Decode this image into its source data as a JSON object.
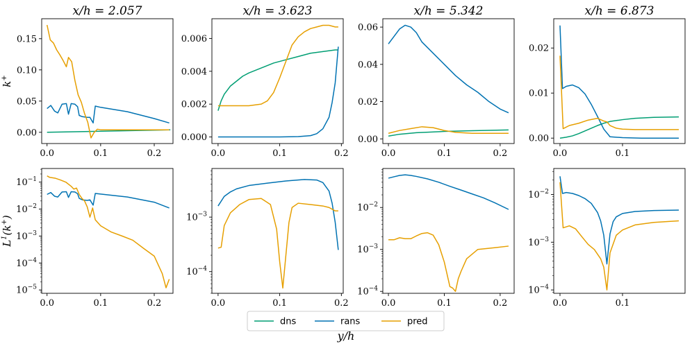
{
  "figure": {
    "xlabel": "y/h"
  },
  "legend": {
    "placement": "bottom-center",
    "entries": [
      {
        "name": "dns",
        "color": "#009E73"
      },
      {
        "name": "rans",
        "color": "#0072B2"
      },
      {
        "name": "pred",
        "color": "#E69F00"
      }
    ]
  },
  "chart_data": [
    {
      "type": "line",
      "title": "x/h = 2.057",
      "row": 0,
      "col": 0,
      "ylabel": "k+",
      "scale": "linear",
      "xlim": [
        -0.01,
        0.235
      ],
      "ylim": [
        -0.018,
        0.182
      ],
      "xticks": [
        "0.0",
        "0.1",
        "0.2"
      ],
      "yticks": [
        "0.00",
        "0.05",
        "0.10",
        "0.15"
      ],
      "series": [
        {
          "name": "dns",
          "x": [
            0,
            0.23
          ],
          "y": [
            0.0,
            0.004
          ]
        },
        {
          "name": "rans",
          "x": [
            0,
            0.007,
            0.014,
            0.02,
            0.028,
            0.036,
            0.04,
            0.045,
            0.052,
            0.057,
            0.06,
            0.066,
            0.075,
            0.08,
            0.086,
            0.09,
            0.1,
            0.15,
            0.2,
            0.228
          ],
          "y": [
            0.038,
            0.043,
            0.034,
            0.031,
            0.045,
            0.046,
            0.029,
            0.046,
            0.045,
            0.041,
            0.027,
            0.025,
            0.024,
            0.024,
            0.015,
            0.042,
            0.04,
            0.033,
            0.022,
            0.015
          ]
        },
        {
          "name": "pred",
          "x": [
            0,
            0.006,
            0.012,
            0.018,
            0.024,
            0.03,
            0.036,
            0.04,
            0.046,
            0.052,
            0.058,
            0.064,
            0.07,
            0.076,
            0.082,
            0.088,
            0.094,
            0.1,
            0.15,
            0.228
          ],
          "y": [
            0.172,
            0.148,
            0.143,
            0.132,
            0.124,
            0.115,
            0.105,
            0.12,
            0.113,
            0.083,
            0.06,
            0.048,
            0.03,
            0.016,
            -0.009,
            0.0,
            0.005,
            0.004,
            0.004,
            0.004
          ]
        }
      ]
    },
    {
      "type": "line",
      "title": "x/h = 3.623",
      "row": 0,
      "col": 1,
      "ylabel": "",
      "scale": "linear",
      "xlim": [
        -0.01,
        0.203
      ],
      "ylim": [
        -0.0004,
        0.0072
      ],
      "xticks": [
        "0.0",
        "0.1",
        "0.2"
      ],
      "yticks": [
        "0.000",
        "0.002",
        "0.004",
        "0.006"
      ],
      "series": [
        {
          "name": "dns",
          "x": [
            0,
            0.005,
            0.01,
            0.02,
            0.03,
            0.04,
            0.05,
            0.07,
            0.09,
            0.11,
            0.13,
            0.15,
            0.17,
            0.19,
            0.195
          ],
          "y": [
            0.0016,
            0.0022,
            0.0026,
            0.0031,
            0.0034,
            0.0037,
            0.0039,
            0.0042,
            0.0045,
            0.0047,
            0.0049,
            0.0051,
            0.0052,
            0.0053,
            0.0053
          ]
        },
        {
          "name": "rans",
          "x": [
            0,
            0.1,
            0.13,
            0.15,
            0.16,
            0.17,
            0.18,
            0.185,
            0.19,
            0.195
          ],
          "y": [
            0.0,
            0.0,
            2e-05,
            8e-05,
            0.0002,
            0.0005,
            0.0012,
            0.0021,
            0.0033,
            0.0055
          ]
        },
        {
          "name": "pred",
          "x": [
            0,
            0.03,
            0.05,
            0.07,
            0.08,
            0.09,
            0.1,
            0.11,
            0.12,
            0.13,
            0.14,
            0.15,
            0.16,
            0.17,
            0.18,
            0.19,
            0.195
          ],
          "y": [
            0.0019,
            0.0019,
            0.0019,
            0.002,
            0.0022,
            0.0027,
            0.0036,
            0.0046,
            0.0056,
            0.0061,
            0.0064,
            0.0066,
            0.0067,
            0.0068,
            0.0068,
            0.0067,
            0.0067
          ]
        }
      ]
    },
    {
      "type": "line",
      "title": "x/h = 5.342",
      "row": 0,
      "col": 2,
      "ylabel": "",
      "scale": "linear",
      "xlim": [
        -0.01,
        0.225
      ],
      "ylim": [
        -0.0025,
        0.0645
      ],
      "xticks": [
        "0.0",
        "0.1",
        "0.2"
      ],
      "yticks": [
        "0.00",
        "0.02",
        "0.04",
        "0.06"
      ],
      "series": [
        {
          "name": "dns",
          "x": [
            0,
            0.02,
            0.05,
            0.1,
            0.15,
            0.215
          ],
          "y": [
            0.0015,
            0.0025,
            0.0033,
            0.004,
            0.0044,
            0.0048
          ]
        },
        {
          "name": "rans",
          "x": [
            0,
            0.01,
            0.02,
            0.03,
            0.04,
            0.05,
            0.06,
            0.08,
            0.1,
            0.12,
            0.14,
            0.16,
            0.18,
            0.2,
            0.215
          ],
          "y": [
            0.051,
            0.055,
            0.059,
            0.061,
            0.06,
            0.057,
            0.052,
            0.046,
            0.04,
            0.034,
            0.029,
            0.025,
            0.02,
            0.016,
            0.014
          ]
        },
        {
          "name": "pred",
          "x": [
            0,
            0.02,
            0.04,
            0.06,
            0.08,
            0.1,
            0.12,
            0.15,
            0.215
          ],
          "y": [
            0.003,
            0.0045,
            0.0055,
            0.0065,
            0.006,
            0.0045,
            0.0035,
            0.003,
            0.003
          ]
        }
      ]
    },
    {
      "type": "line",
      "title": "x/h = 6.873",
      "row": 0,
      "col": 3,
      "ylabel": "",
      "scale": "linear",
      "xlim": [
        -0.01,
        0.2
      ],
      "ylim": [
        -0.0012,
        0.0265
      ],
      "xticks": [
        "0.0",
        "0.1"
      ],
      "yticks": [
        "0.00",
        "0.01",
        "0.02"
      ],
      "series": [
        {
          "name": "dns",
          "x": [
            0,
            0.01,
            0.02,
            0.03,
            0.04,
            0.05,
            0.06,
            0.07,
            0.08,
            0.1,
            0.12,
            0.15,
            0.19
          ],
          "y": [
            0.0,
            0.0002,
            0.0005,
            0.001,
            0.0016,
            0.0022,
            0.0028,
            0.0033,
            0.0037,
            0.0041,
            0.0044,
            0.0046,
            0.0047
          ]
        },
        {
          "name": "rans",
          "x": [
            0,
            0.004,
            0.01,
            0.02,
            0.03,
            0.04,
            0.05,
            0.06,
            0.07,
            0.08,
            0.1,
            0.13,
            0.19
          ],
          "y": [
            0.025,
            0.011,
            0.0115,
            0.0118,
            0.0112,
            0.0098,
            0.0075,
            0.0048,
            0.002,
            0.0003,
            0.0001,
            0.0,
            0.0
          ]
        },
        {
          "name": "pred",
          "x": [
            0,
            0.005,
            0.015,
            0.03,
            0.045,
            0.06,
            0.07,
            0.075,
            0.08,
            0.09,
            0.1,
            0.12,
            0.15,
            0.19
          ],
          "y": [
            0.0183,
            0.0021,
            0.0028,
            0.0033,
            0.004,
            0.0044,
            0.0038,
            0.0036,
            0.0028,
            0.0022,
            0.002,
            0.0019,
            0.0019,
            0.0019
          ]
        }
      ]
    },
    {
      "type": "line",
      "title": "",
      "row": 1,
      "col": 0,
      "ylabel": "L1(k+)",
      "scale": "log",
      "xlim": [
        -0.01,
        0.235
      ],
      "ylim": [
        7.5e-06,
        0.32
      ],
      "xticks": [
        "0.0",
        "0.1",
        "0.2"
      ],
      "yticks": [
        "10^-5",
        "10^-4",
        "10^-3",
        "10^-2",
        "10^-1"
      ],
      "series": [
        {
          "name": "rans",
          "x": [
            0,
            0.007,
            0.014,
            0.02,
            0.028,
            0.036,
            0.04,
            0.045,
            0.052,
            0.057,
            0.06,
            0.066,
            0.075,
            0.08,
            0.086,
            0.09,
            0.1,
            0.15,
            0.2,
            0.228
          ],
          "y": [
            0.035,
            0.041,
            0.03,
            0.028,
            0.043,
            0.044,
            0.027,
            0.044,
            0.043,
            0.037,
            0.025,
            0.022,
            0.021,
            0.022,
            0.014,
            0.038,
            0.036,
            0.028,
            0.018,
            0.011
          ]
        },
        {
          "name": "pred",
          "x": [
            0,
            0.005,
            0.015,
            0.025,
            0.035,
            0.045,
            0.05,
            0.055,
            0.06,
            0.065,
            0.07,
            0.075,
            0.08,
            0.085,
            0.09,
            0.1,
            0.12,
            0.14,
            0.16,
            0.18,
            0.2,
            0.215,
            0.222,
            0.228
          ],
          "y": [
            0.17,
            0.15,
            0.14,
            0.12,
            0.1,
            0.07,
            0.055,
            0.06,
            0.035,
            0.025,
            0.02,
            0.012,
            0.005,
            0.011,
            0.004,
            0.0024,
            0.0014,
            0.001,
            0.0007,
            0.00035,
            0.00018,
            4e-05,
            1.2e-05,
            2.5e-05
          ]
        }
      ]
    },
    {
      "type": "line",
      "title": "",
      "row": 1,
      "col": 1,
      "ylabel": "",
      "scale": "log",
      "xlim": [
        -0.01,
        0.203
      ],
      "ylim": [
        4e-05,
        0.0078
      ],
      "xticks": [
        "0.0",
        "0.1",
        "0.2"
      ],
      "yticks": [
        "10^-4",
        "10^-3"
      ],
      "series": [
        {
          "name": "rans",
          "x": [
            0,
            0.01,
            0.02,
            0.03,
            0.05,
            0.08,
            0.11,
            0.14,
            0.16,
            0.17,
            0.18,
            0.185,
            0.19,
            0.195
          ],
          "y": [
            0.0016,
            0.0024,
            0.0029,
            0.0033,
            0.0038,
            0.0042,
            0.0046,
            0.0049,
            0.0048,
            0.0043,
            0.003,
            0.0018,
            0.0008,
            0.00025
          ]
        },
        {
          "name": "pred",
          "x": [
            0,
            0.005,
            0.01,
            0.02,
            0.035,
            0.05,
            0.07,
            0.085,
            0.095,
            0.1,
            0.105,
            0.11,
            0.115,
            0.12,
            0.13,
            0.15,
            0.17,
            0.18,
            0.19,
            0.195
          ],
          "y": [
            0.00027,
            0.00028,
            0.0007,
            0.0012,
            0.0017,
            0.0021,
            0.0022,
            0.0017,
            0.0006,
            0.00015,
            5e-05,
            0.0002,
            0.0008,
            0.0015,
            0.0018,
            0.0017,
            0.0016,
            0.0015,
            0.0013,
            0.0013
          ]
        }
      ]
    },
    {
      "type": "line",
      "title": "",
      "row": 1,
      "col": 2,
      "ylabel": "",
      "scale": "log",
      "xlim": [
        -0.01,
        0.225
      ],
      "ylim": [
        9e-05,
        0.085
      ],
      "xticks": [
        "0.0",
        "0.1",
        "0.2"
      ],
      "yticks": [
        "10^-4",
        "10^-3",
        "10^-2"
      ],
      "series": [
        {
          "name": "rans",
          "x": [
            0,
            0.01,
            0.02,
            0.03,
            0.04,
            0.05,
            0.07,
            0.09,
            0.11,
            0.13,
            0.15,
            0.17,
            0.19,
            0.215
          ],
          "y": [
            0.05,
            0.054,
            0.058,
            0.06,
            0.058,
            0.055,
            0.048,
            0.04,
            0.032,
            0.026,
            0.021,
            0.017,
            0.013,
            0.009
          ]
        },
        {
          "name": "pred",
          "x": [
            0,
            0.01,
            0.02,
            0.03,
            0.04,
            0.05,
            0.06,
            0.07,
            0.08,
            0.09,
            0.1,
            0.11,
            0.115,
            0.12,
            0.125,
            0.13,
            0.14,
            0.16,
            0.19,
            0.215
          ],
          "y": [
            0.0017,
            0.0017,
            0.0019,
            0.0018,
            0.0018,
            0.0021,
            0.0024,
            0.0025,
            0.0022,
            0.0013,
            0.0005,
            0.00013,
            0.00012,
            0.0001,
            0.0002,
            0.0003,
            0.0006,
            0.001,
            0.0011,
            0.0012
          ]
        }
      ]
    },
    {
      "type": "line",
      "title": "",
      "row": 1,
      "col": 3,
      "ylabel": "",
      "scale": "log",
      "xlim": [
        -0.01,
        0.2
      ],
      "ylim": [
        8.5e-05,
        0.035
      ],
      "xticks": [
        "0.0",
        "0.1"
      ],
      "yticks": [
        "10^-4",
        "10^-3",
        "10^-2"
      ],
      "series": [
        {
          "name": "rans",
          "x": [
            0,
            0.004,
            0.01,
            0.02,
            0.03,
            0.04,
            0.05,
            0.06,
            0.065,
            0.07,
            0.075,
            0.08,
            0.085,
            0.09,
            0.1,
            0.12,
            0.15,
            0.19
          ],
          "y": [
            0.024,
            0.0105,
            0.011,
            0.0105,
            0.0095,
            0.0082,
            0.0065,
            0.0042,
            0.0028,
            0.0014,
            0.00035,
            0.0015,
            0.0027,
            0.0034,
            0.004,
            0.0044,
            0.0046,
            0.0047
          ]
        },
        {
          "name": "pred",
          "x": [
            0,
            0.005,
            0.015,
            0.025,
            0.035,
            0.045,
            0.055,
            0.065,
            0.07,
            0.075,
            0.08,
            0.09,
            0.1,
            0.12,
            0.15,
            0.19
          ],
          "y": [
            0.018,
            0.002,
            0.0022,
            0.0019,
            0.0013,
            0.0009,
            0.0007,
            0.00045,
            0.0003,
            0.0001,
            0.0006,
            0.0014,
            0.0018,
            0.0023,
            0.0026,
            0.0028
          ]
        }
      ]
    }
  ]
}
